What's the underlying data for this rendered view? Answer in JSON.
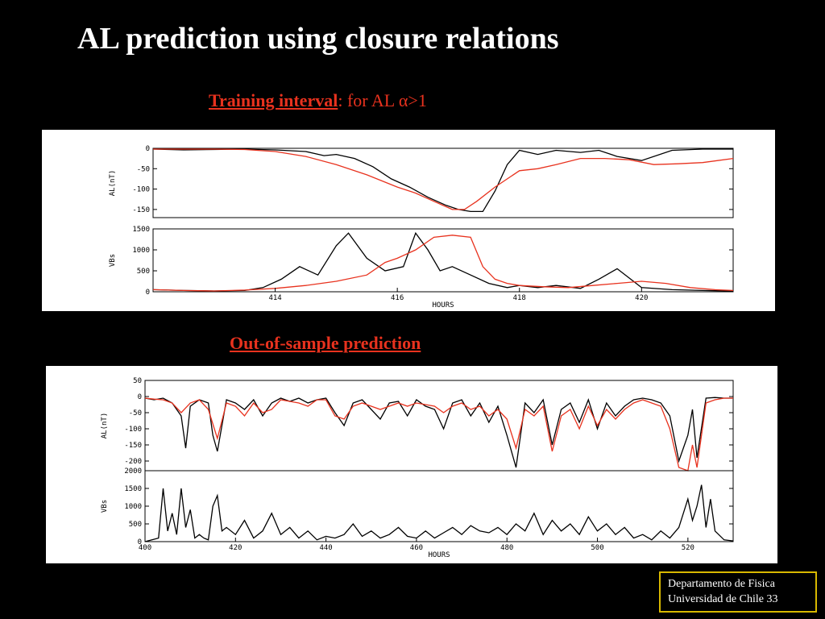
{
  "slide": {
    "title": "AL prediction using closure relations",
    "subtitle1_bold": "Training interval",
    "subtitle1_rest": ": for AL α>1",
    "subtitle2": "Out-of-sample prediction",
    "footer_line1": "Departamento de Fisica",
    "footer_line2": "Universidad de Chile  33"
  },
  "colors": {
    "observed": "#000000",
    "predicted": "#e8321e",
    "accent": "#e8321e",
    "footer_border": "#d8b800"
  },
  "chart_data": [
    {
      "type": "line",
      "name": "training-interval",
      "xlabel": "HOURS",
      "xlim": [
        412,
        421.5
      ],
      "xticks": [
        414,
        416,
        418,
        420
      ],
      "panels": [
        {
          "ylabel": "AL(nT)",
          "ylim": [
            -170,
            0
          ],
          "yticks": [
            0,
            -50,
            -100,
            -150
          ],
          "series": [
            {
              "name": "observed",
              "x": [
                412,
                412.5,
                413,
                413.5,
                414,
                414.5,
                414.8,
                415,
                415.3,
                415.6,
                415.9,
                416.2,
                416.5,
                416.8,
                417,
                417.2,
                417.4,
                417.6,
                417.8,
                418,
                418.3,
                418.6,
                419,
                419.3,
                419.6,
                420,
                420.5,
                421,
                421.5
              ],
              "y": [
                -2,
                -4,
                -3,
                -2,
                -4,
                -8,
                -18,
                -15,
                -25,
                -45,
                -75,
                -95,
                -120,
                -140,
                -150,
                -155,
                -155,
                -105,
                -40,
                -5,
                -15,
                -5,
                -10,
                -5,
                -20,
                -30,
                -5,
                -2,
                -2
              ]
            },
            {
              "name": "predicted",
              "x": [
                412,
                412.5,
                413,
                413.5,
                414,
                414.5,
                415,
                415.5,
                416,
                416.3,
                416.6,
                416.9,
                417.1,
                417.3,
                417.6,
                418,
                418.3,
                418.6,
                419,
                419.4,
                419.8,
                420.2,
                420.6,
                421,
                421.5
              ],
              "y": [
                -2,
                -2,
                -2,
                -3,
                -8,
                -20,
                -40,
                -65,
                -95,
                -110,
                -130,
                -150,
                -150,
                -130,
                -95,
                -55,
                -50,
                -40,
                -25,
                -25,
                -28,
                -40,
                -38,
                -35,
                -25
              ]
            }
          ]
        },
        {
          "ylabel": "VBs",
          "ylim": [
            0,
            1500
          ],
          "yticks": [
            0,
            500,
            1000,
            1500
          ],
          "series": [
            {
              "name": "observed",
              "x": [
                412,
                412.5,
                413,
                413.5,
                413.8,
                414.1,
                414.4,
                414.7,
                415,
                415.2,
                415.5,
                415.8,
                416.1,
                416.3,
                416.5,
                416.7,
                416.9,
                417.2,
                417.5,
                417.8,
                418,
                418.3,
                418.6,
                419,
                419.3,
                419.6,
                420,
                420.5,
                421,
                421.5
              ],
              "y": [
                50,
                30,
                20,
                30,
                100,
                300,
                600,
                400,
                1100,
                1400,
                800,
                500,
                600,
                1400,
                1000,
                500,
                600,
                400,
                200,
                100,
                150,
                100,
                150,
                80,
                300,
                550,
                100,
                50,
                30,
                20
              ]
            },
            {
              "name": "predicted",
              "x": [
                412,
                412.5,
                413,
                413.5,
                414,
                414.5,
                415,
                415.5,
                415.8,
                416,
                416.3,
                416.6,
                416.9,
                417.2,
                417.4,
                417.6,
                417.8,
                418,
                418.4,
                418.8,
                419.2,
                419.6,
                420,
                420.4,
                420.8,
                421.2,
                421.5
              ],
              "y": [
                50,
                30,
                20,
                40,
                80,
                150,
                250,
                400,
                700,
                800,
                1000,
                1300,
                1350,
                1300,
                600,
                300,
                200,
                150,
                120,
                100,
                150,
                200,
                250,
                200,
                100,
                50,
                30
              ]
            }
          ]
        }
      ]
    },
    {
      "type": "line",
      "name": "out-of-sample-prediction",
      "xlabel": "HOURS",
      "xlim": [
        400,
        530
      ],
      "xticks": [
        400,
        420,
        440,
        460,
        480,
        500,
        520
      ],
      "panels": [
        {
          "ylabel": "AL(nT)",
          "ylim": [
            -230,
            50
          ],
          "yticks": [
            50,
            0,
            -50,
            -100,
            -150,
            -200
          ],
          "series": [
            {
              "name": "observed",
              "x": [
                400,
                402,
                404,
                406,
                408,
                409,
                410,
                412,
                414,
                415,
                416,
                418,
                420,
                422,
                424,
                426,
                428,
                430,
                432,
                434,
                436,
                438,
                440,
                442,
                444,
                446,
                448,
                450,
                452,
                454,
                456,
                458,
                460,
                462,
                464,
                466,
                468,
                470,
                472,
                474,
                476,
                478,
                480,
                482,
                484,
                486,
                488,
                490,
                492,
                494,
                496,
                498,
                500,
                502,
                504,
                506,
                508,
                510,
                512,
                514,
                516,
                518,
                520,
                521,
                522,
                524,
                526,
                528,
                530
              ],
              "y": [
                -5,
                -10,
                -5,
                -20,
                -60,
                -160,
                -30,
                -10,
                -20,
                -120,
                -170,
                -10,
                -20,
                -40,
                -10,
                -60,
                -20,
                -5,
                -15,
                -5,
                -20,
                -10,
                -5,
                -50,
                -90,
                -20,
                -10,
                -40,
                -70,
                -20,
                -15,
                -60,
                -10,
                -30,
                -40,
                -100,
                -20,
                -10,
                -60,
                -20,
                -80,
                -30,
                -120,
                -220,
                -20,
                -50,
                -10,
                -150,
                -40,
                -20,
                -80,
                -10,
                -100,
                -20,
                -60,
                -30,
                -10,
                -5,
                -10,
                -20,
                -60,
                -200,
                -120,
                -40,
                -190,
                -5,
                -3,
                -5,
                -5
              ]
            },
            {
              "name": "predicted",
              "x": [
                400,
                402,
                404,
                406,
                408,
                410,
                412,
                414,
                416,
                418,
                420,
                422,
                424,
                426,
                428,
                430,
                432,
                434,
                436,
                438,
                440,
                442,
                444,
                446,
                448,
                450,
                452,
                454,
                456,
                458,
                460,
                462,
                464,
                466,
                468,
                470,
                472,
                474,
                476,
                478,
                480,
                482,
                484,
                486,
                488,
                490,
                492,
                494,
                496,
                498,
                500,
                502,
                504,
                506,
                508,
                510,
                512,
                514,
                516,
                518,
                520,
                521,
                522,
                524,
                526,
                528,
                530
              ],
              "y": [
                -5,
                -8,
                -10,
                -20,
                -50,
                -20,
                -10,
                -40,
                -130,
                -20,
                -30,
                -60,
                -20,
                -50,
                -40,
                -10,
                -15,
                -20,
                -30,
                -10,
                -10,
                -60,
                -70,
                -30,
                -20,
                -30,
                -40,
                -30,
                -20,
                -30,
                -20,
                -25,
                -30,
                -50,
                -30,
                -20,
                -40,
                -30,
                -60,
                -40,
                -70,
                -160,
                -40,
                -60,
                -30,
                -170,
                -60,
                -40,
                -100,
                -30,
                -90,
                -40,
                -70,
                -40,
                -20,
                -10,
                -20,
                -30,
                -100,
                -220,
                -230,
                -150,
                -220,
                -20,
                -10,
                -5,
                -5
              ]
            }
          ]
        },
        {
          "ylabel": "VBs",
          "ylim": [
            0,
            2000
          ],
          "yticks": [
            0,
            500,
            1000,
            1500,
            2000
          ],
          "series": [
            {
              "name": "observed",
              "x": [
                400,
                403,
                404,
                405,
                406,
                407,
                408,
                409,
                410,
                411,
                412,
                413,
                414,
                415,
                416,
                417,
                418,
                420,
                422,
                424,
                426,
                428,
                430,
                432,
                434,
                436,
                438,
                440,
                442,
                444,
                446,
                448,
                450,
                452,
                454,
                456,
                458,
                460,
                462,
                464,
                466,
                468,
                470,
                472,
                474,
                476,
                478,
                480,
                482,
                484,
                486,
                488,
                490,
                492,
                494,
                496,
                498,
                500,
                502,
                504,
                506,
                508,
                510,
                512,
                514,
                516,
                518,
                519,
                520,
                521,
                522,
                523,
                524,
                525,
                526,
                528,
                530
              ],
              "y": [
                0,
                100,
                1500,
                300,
                800,
                200,
                1500,
                400,
                900,
                100,
                200,
                100,
                50,
                1000,
                1300,
                300,
                400,
                200,
                600,
                100,
                300,
                800,
                200,
                400,
                100,
                300,
                50,
                150,
                100,
                200,
                500,
                150,
                300,
                100,
                200,
                400,
                150,
                100,
                300,
                100,
                250,
                400,
                200,
                450,
                300,
                250,
                400,
                200,
                500,
                300,
                800,
                200,
                600,
                300,
                500,
                200,
                700,
                300,
                500,
                200,
                400,
                100,
                200,
                50,
                300,
                100,
                400,
                800,
                1200,
                600,
                1000,
                1600,
                400,
                1200,
                300,
                50,
                20
              ]
            }
          ]
        }
      ]
    }
  ]
}
